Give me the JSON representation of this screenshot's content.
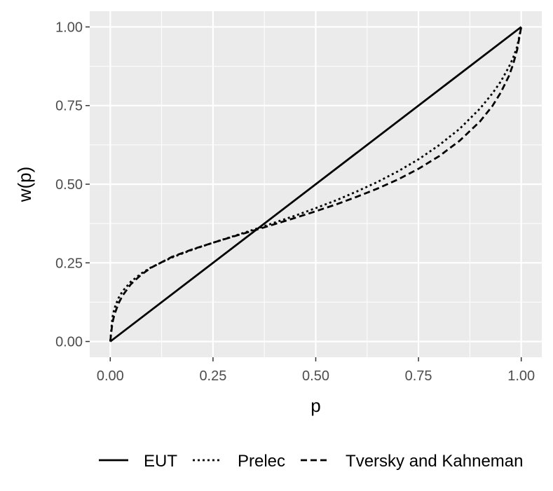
{
  "chart_data": {
    "type": "line",
    "xlabel": "p",
    "ylabel": "w(p)",
    "xlim": [
      -0.05,
      1.05
    ],
    "ylim": [
      -0.05,
      1.05
    ],
    "x_ticks": [
      0,
      0.25,
      0.5,
      0.75,
      1
    ],
    "x_tick_labels": [
      "0.00",
      "0.25",
      "0.50",
      "0.75",
      "1.00"
    ],
    "y_ticks": [
      0,
      0.25,
      0.5,
      0.75,
      1
    ],
    "y_tick_labels": [
      "0.00",
      "0.25",
      "0.50",
      "0.75",
      "1.00"
    ],
    "grid": true,
    "legend_position": "bottom",
    "series": [
      {
        "name": "EUT",
        "dash": "solid",
        "x": [
          0,
          1
        ],
        "y": [
          0,
          1
        ]
      },
      {
        "name": "Prelec",
        "dash": "dotted",
        "x": [
          0,
          0.005,
          0.01,
          0.02,
          0.03,
          0.05,
          0.075,
          0.1,
          0.15,
          0.2,
          0.25,
          0.3,
          0.35,
          0.4,
          0.45,
          0.5,
          0.55,
          0.6,
          0.65,
          0.7,
          0.75,
          0.8,
          0.85,
          0.9,
          0.93,
          0.95,
          0.97,
          0.98,
          0.99,
          1
        ],
        "y": [
          0,
          0.075,
          0.105,
          0.138,
          0.16,
          0.19,
          0.216,
          0.236,
          0.267,
          0.292,
          0.314,
          0.335,
          0.356,
          0.378,
          0.4,
          0.424,
          0.449,
          0.477,
          0.507,
          0.541,
          0.579,
          0.624,
          0.676,
          0.741,
          0.789,
          0.826,
          0.873,
          0.901,
          0.937,
          1
        ]
      },
      {
        "name": "Tversky and Kahneman",
        "dash": "dashed",
        "x": [
          0,
          0.005,
          0.01,
          0.02,
          0.03,
          0.05,
          0.075,
          0.1,
          0.15,
          0.2,
          0.25,
          0.3,
          0.35,
          0.4,
          0.45,
          0.5,
          0.55,
          0.6,
          0.65,
          0.7,
          0.75,
          0.8,
          0.85,
          0.9,
          0.93,
          0.95,
          0.97,
          0.98,
          0.99,
          1
        ],
        "y": [
          0,
          0.058,
          0.085,
          0.121,
          0.146,
          0.182,
          0.212,
          0.235,
          0.269,
          0.293,
          0.314,
          0.334,
          0.353,
          0.373,
          0.393,
          0.414,
          0.436,
          0.46,
          0.486,
          0.515,
          0.549,
          0.589,
          0.638,
          0.7,
          0.749,
          0.791,
          0.844,
          0.88,
          0.927,
          1
        ]
      }
    ]
  }
}
